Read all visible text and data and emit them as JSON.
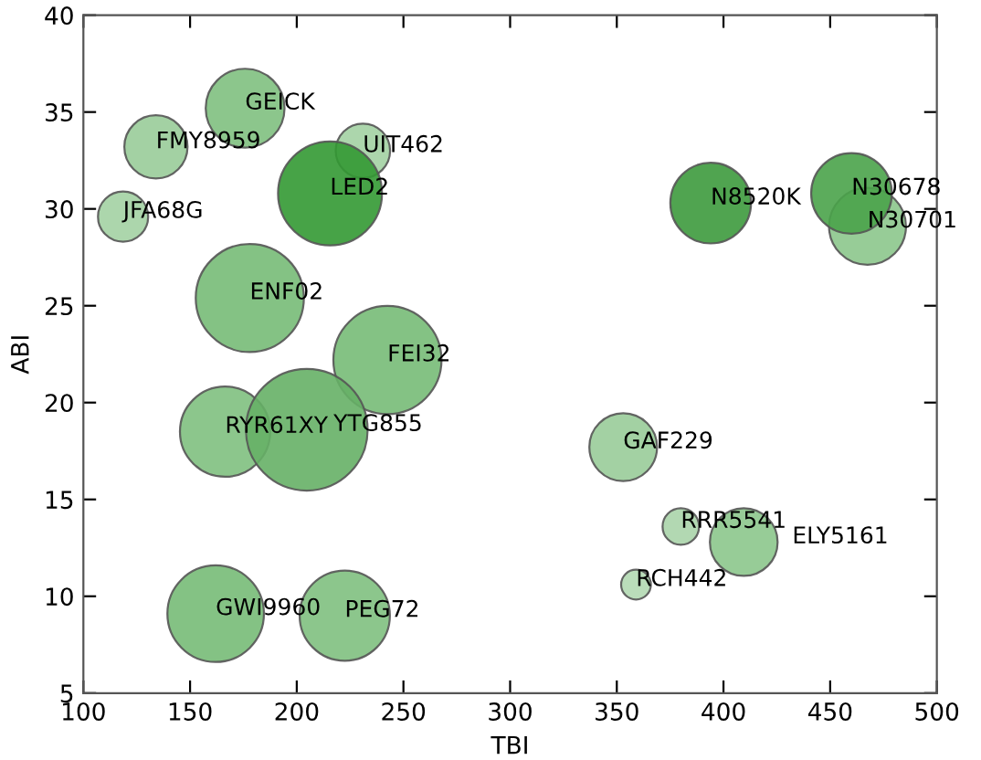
{
  "chart_data": {
    "type": "bubble",
    "xlabel": "TBI",
    "ylabel": "ABI",
    "x": [
      175.8,
      134,
      118.6,
      231,
      215.6,
      178,
      242.5,
      166.4,
      204.7,
      162,
      222.5,
      394,
      467.5,
      460,
      353,
      380,
      409.5,
      359
    ],
    "values": [
      35.2,
      33.2,
      29.6,
      33.0,
      30.8,
      25.4,
      22.2,
      18.5,
      18.6,
      9.1,
      9.0,
      30.3,
      29.1,
      30.8,
      17.7,
      13.6,
      12.8,
      10.6
    ],
    "sizes": [
      0.42,
      0.27,
      0.17,
      0.2,
      0.73,
      0.79,
      0.79,
      0.55,
      1,
      0.63,
      0.55,
      0.44,
      0.4,
      0.44,
      0.31,
      0.09,
      0.31,
      0.06
    ],
    "colors": [
      "#80c080",
      "#99cc99",
      "#a3d1a3",
      "#a3d1a3",
      "#339933",
      "#77bb77",
      "#77bb77",
      "#80c080",
      "#66b066",
      "#77bb77",
      "#80c080",
      "#3d9a3d",
      "#8cc68c",
      "#4aa34a",
      "#99cc99",
      "#aad4aa",
      "#8cc68c",
      "#b3d9b3"
    ],
    "annotations": [
      {
        "text": "GEICK",
        "x": 175.8,
        "y": 35.2
      },
      {
        "text": "FMY8959",
        "x": 134,
        "y": 33.2
      },
      {
        "text": "JFA68G",
        "x": 118.6,
        "y": 29.6
      },
      {
        "text": "UIT462",
        "x": 231,
        "y": 33.0
      },
      {
        "text": "LED2",
        "x": 215.6,
        "y": 30.8
      },
      {
        "text": "ENF02",
        "x": 178,
        "y": 25.4
      },
      {
        "text": "FEI32",
        "x": 242.5,
        "y": 22.2
      },
      {
        "text": "RYR61XY",
        "x": 166.4,
        "y": 18.5
      },
      {
        "text": "YTG855",
        "x": 204.7,
        "y": 18.6
      },
      {
        "text": "GWI9960",
        "x": 162,
        "y": 9.1
      },
      {
        "text": "PEG72",
        "x": 222.5,
        "y": 9.0
      },
      {
        "text": "N8520K",
        "x": 394,
        "y": 30.3
      },
      {
        "text": "N30701",
        "x": 467.5,
        "y": 29.1
      },
      {
        "text": "N30678",
        "x": 460,
        "y": 30.8
      },
      {
        "text": "GAF229",
        "x": 353,
        "y": 17.7
      },
      {
        "text": "RRR5541",
        "x": 380,
        "y": 13.6
      },
      {
        "text": "ELY5161",
        "x": 409.5,
        "y": 12.8
      },
      {
        "text": "RCH442",
        "x": 359,
        "y": 10.6
      }
    ],
    "xlim": [
      100,
      500
    ],
    "ylim": [
      5,
      40
    ],
    "xticks": [
      100,
      150,
      200,
      250,
      300,
      350,
      400,
      450,
      500
    ],
    "yticks": [
      5,
      10,
      15,
      20,
      25,
      30,
      35,
      40
    ],
    "grid": false,
    "legend": false
  }
}
